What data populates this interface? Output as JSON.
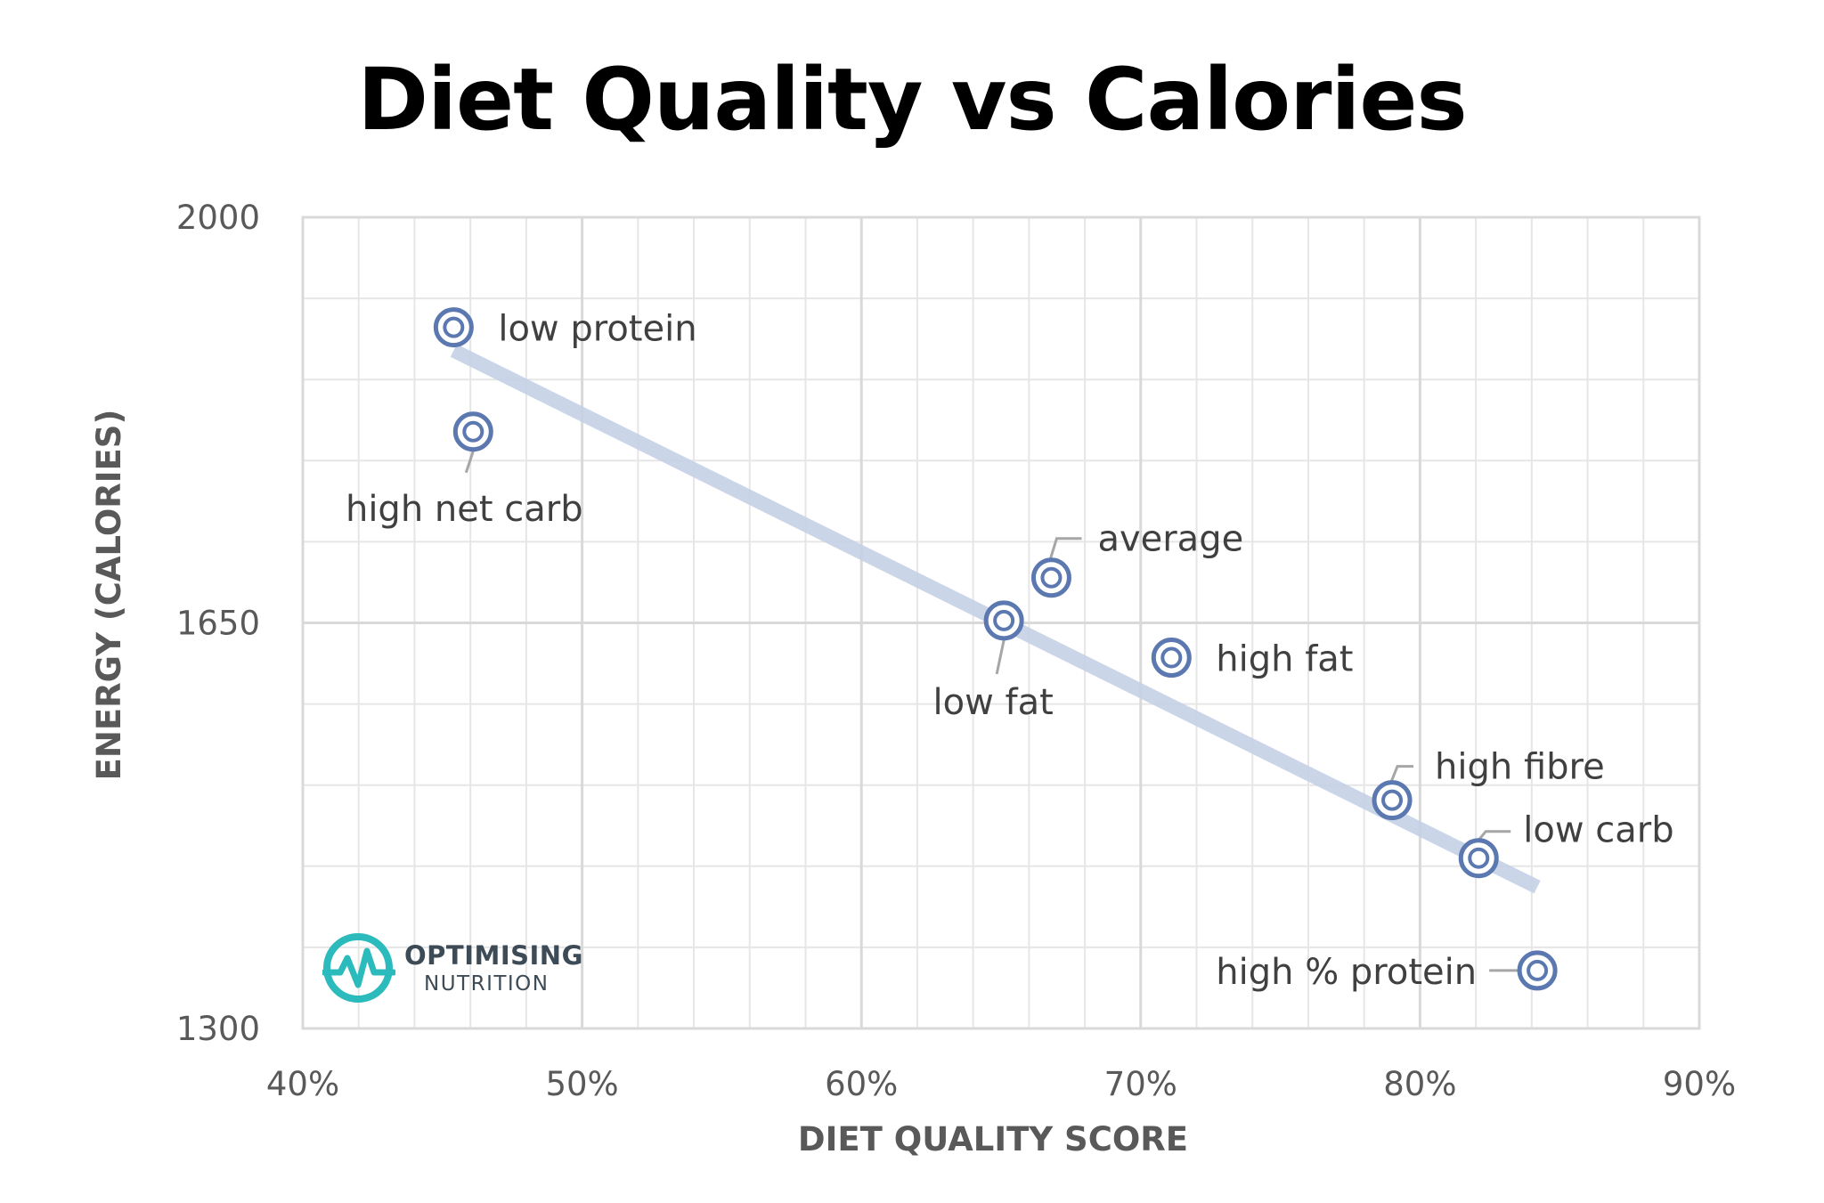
{
  "chart_data": {
    "type": "scatter",
    "title": "Diet Quality vs Calories",
    "xlabel": "DIET QUALITY SCORE",
    "ylabel": "ENERGY (CALORIES)",
    "xlim": [
      40,
      90
    ],
    "ylim": [
      1300,
      2000
    ],
    "x_ticks": [
      "40%",
      "50%",
      "60%",
      "70%",
      "80%",
      "90%"
    ],
    "y_ticks": [
      "1300",
      "1650",
      "2000"
    ],
    "grid": true,
    "points": [
      {
        "label": "low protein",
        "x": 45.4,
        "y": 1905
      },
      {
        "label": "high net carb",
        "x": 46.1,
        "y": 1815
      },
      {
        "label": "average",
        "x": 66.8,
        "y": 1689
      },
      {
        "label": "low fat",
        "x": 65.1,
        "y": 1652
      },
      {
        "label": "high fat",
        "x": 71.1,
        "y": 1620
      },
      {
        "label": "high fibre",
        "x": 79.0,
        "y": 1497
      },
      {
        "label": "low carb",
        "x": 82.1,
        "y": 1447
      },
      {
        "label": "high % protein",
        "x": 84.2,
        "y": 1350
      }
    ],
    "trendline": {
      "x": [
        45.4,
        84.2
      ],
      "y": [
        1885,
        1422
      ]
    },
    "colors": {
      "marker": "#5b78b0",
      "trendline": "#c5d1e6",
      "grid": "#d9d9d9"
    }
  },
  "logo": {
    "line1": "OPTIMISING",
    "line2": "NUTRITION",
    "color": "#2bbbbd"
  }
}
